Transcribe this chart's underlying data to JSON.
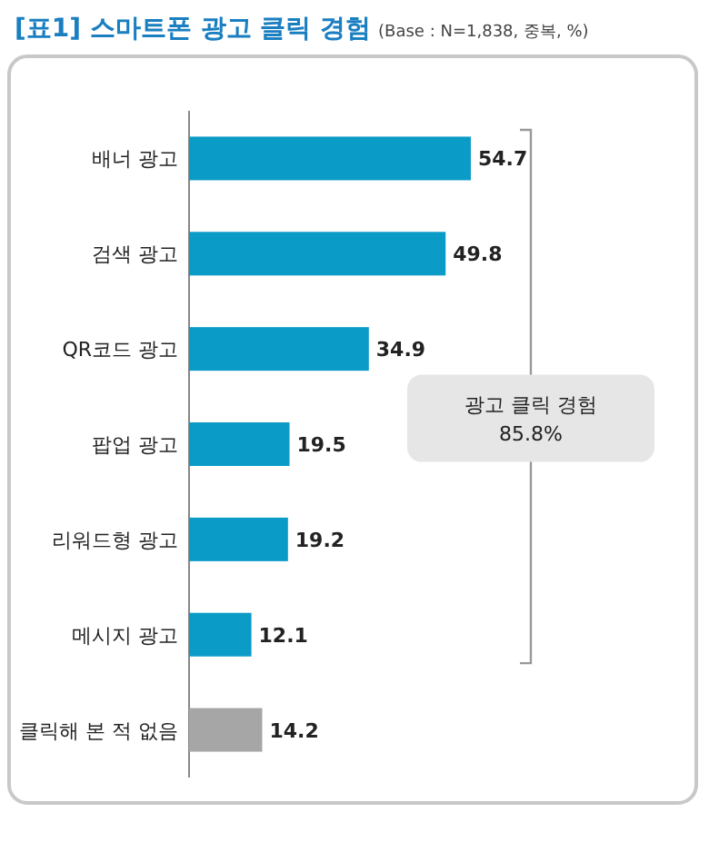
{
  "chart_data": {
    "type": "bar",
    "orientation": "horizontal",
    "title": "[표1] 스마트폰 광고 클릭 경험",
    "subtitle": "(Base : N=1,838, 중복, %)",
    "categories": [
      "배너 광고",
      "검색 광고",
      "QR코드 광고",
      "팝업 광고",
      "리워드형 광고",
      "메시지 광고",
      "클릭해 본 적 없음"
    ],
    "values": [
      54.7,
      49.8,
      34.9,
      19.5,
      19.2,
      12.1,
      14.2
    ],
    "colors": [
      "#0a9bc7",
      "#0a9bc7",
      "#0a9bc7",
      "#0a9bc7",
      "#0a9bc7",
      "#0a9bc7",
      "#a6a6a6"
    ],
    "data_labels": true,
    "annotations": [
      "광고 클릭 경험\n85.8%"
    ]
  }
}
